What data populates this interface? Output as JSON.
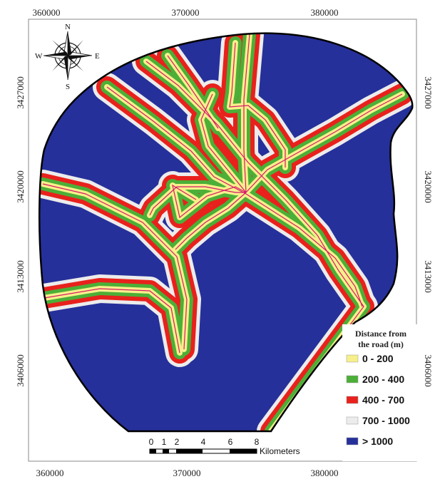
{
  "axes": {
    "x_ticks": [
      "360000",
      "370000",
      "380000"
    ],
    "y_ticks": [
      "3427000",
      "3420000",
      "3413000",
      "3406000"
    ]
  },
  "compass": {
    "n": "N",
    "s": "S",
    "e": "E",
    "w": "W"
  },
  "legend": {
    "title_line1": "Distance from",
    "title_line2": "the road  (m)",
    "items": [
      {
        "label": "0 - 200",
        "color": "#f7ef8a"
      },
      {
        "label": "200 - 400",
        "color": "#4caf37"
      },
      {
        "label": "400 - 700",
        "color": "#e8211c"
      },
      {
        "label": "700 - 1000",
        "color": "#ececec"
      },
      {
        "label": "> 1000",
        "color": "#26309a"
      }
    ]
  },
  "scale_bar": {
    "ticks": [
      "0",
      "1",
      "2",
      "4",
      "6",
      "8"
    ],
    "unit": "Kilometers"
  },
  "colors": {
    "background_class": "#26309a",
    "road": "#d61a6a",
    "boundary": "#000000"
  }
}
